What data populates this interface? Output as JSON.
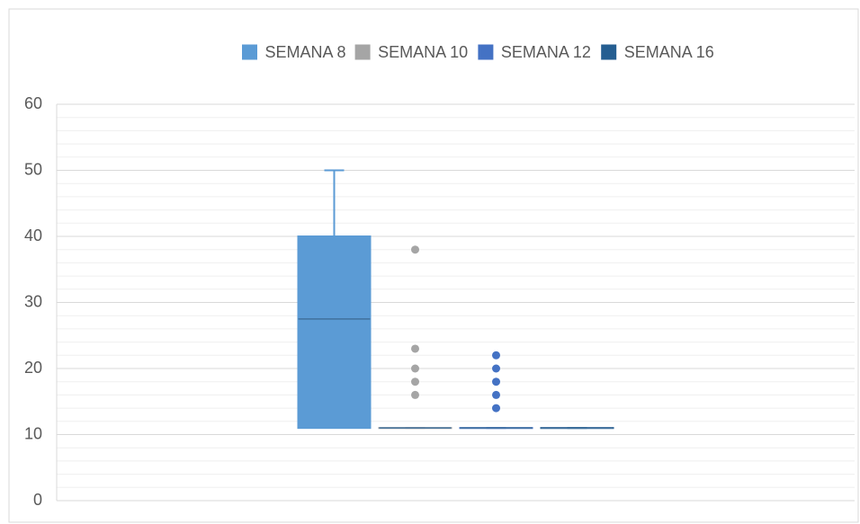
{
  "chart_data": {
    "type": "box",
    "series": [
      {
        "name": "SEMANA 8",
        "color": "#5b9bd5",
        "min": 11,
        "q1": 11,
        "median": 27.5,
        "q3": 40,
        "max": 50,
        "outliers": []
      },
      {
        "name": "SEMANA 10",
        "color": "#a5a5a5",
        "min": 11,
        "q1": 11,
        "median": 11,
        "q3": 11,
        "max": 11,
        "outliers": [
          38,
          23,
          20,
          18,
          16
        ]
      },
      {
        "name": "SEMANA 12",
        "color": "#4472c4",
        "min": 11,
        "q1": 11,
        "median": 11,
        "q3": 11,
        "max": 11,
        "outliers": [
          22,
          20,
          18,
          16,
          14
        ]
      },
      {
        "name": "SEMANA 16",
        "color": "#255e91",
        "min": 11,
        "q1": 11,
        "median": 11,
        "q3": 11,
        "max": 11,
        "outliers": []
      }
    ],
    "ylim": [
      0,
      60
    ],
    "yticks": [
      0,
      10,
      20,
      30,
      40,
      50,
      60
    ],
    "grid": true,
    "minor_grid": true,
    "legend": "top"
  }
}
